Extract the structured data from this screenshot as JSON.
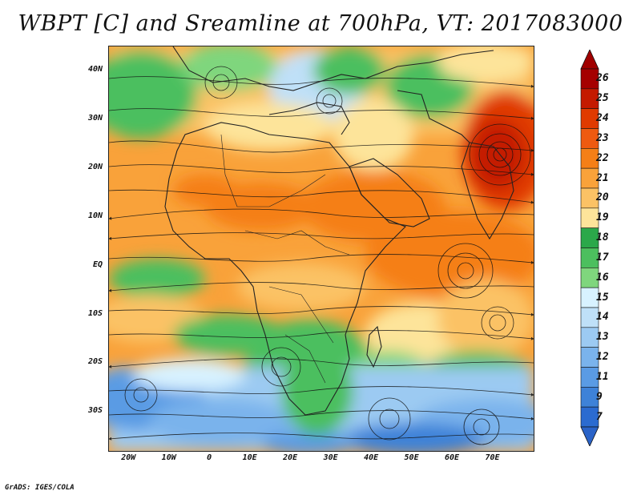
{
  "title": "WBPT [C] and Sreamline at 700hPa, VT: 2017083000",
  "credit": "GrADS: IGES/COLA",
  "lat_labels": [
    "40N",
    "30N",
    "20N",
    "10N",
    "EQ",
    "10S",
    "20S",
    "30S"
  ],
  "lon_labels": [
    "20W",
    "10W",
    "0",
    "10E",
    "20E",
    "30E",
    "40E",
    "50E",
    "60E",
    "70E"
  ],
  "colorbar": {
    "labels": [
      "26",
      "25",
      "24",
      "23",
      "22",
      "21",
      "20",
      "19",
      "18",
      "17",
      "16",
      "15",
      "14",
      "13",
      "12",
      "11",
      "9",
      "7"
    ],
    "colors": [
      "#a50000",
      "#c41a00",
      "#e03a00",
      "#ee5a10",
      "#f57f17",
      "#f9a23a",
      "#fbc265",
      "#fde49a",
      "#2ba84a",
      "#4cbf5e",
      "#7fd67d",
      "#d8f2ff",
      "#bfe0f8",
      "#9ccaf2",
      "#7ab3ec",
      "#5a9be4",
      "#3e82d8",
      "#2b6bd0"
    ],
    "min_arrow_color": "#2a63c8",
    "max_arrow_color": "#a00000"
  },
  "chart_data": {
    "type": "heatmap",
    "title": "WBPT [C] and Sreamline at 700hPa, VT: 2017083000",
    "variable": "Wet-bulb potential temperature (C) with streamlines",
    "level": "700hPa",
    "valid_time": "2017083000",
    "lon_range": [
      -25,
      80
    ],
    "lat_range": [
      -38,
      45
    ],
    "x_ticks": [
      "20W",
      "10W",
      "0",
      "10E",
      "20E",
      "30E",
      "40E",
      "50E",
      "60E",
      "70E"
    ],
    "y_ticks": [
      "40N",
      "30N",
      "20N",
      "10N",
      "EQ",
      "10S",
      "20S",
      "30S"
    ],
    "colorbar_levels": [
      7,
      9,
      11,
      12,
      13,
      14,
      15,
      16,
      17,
      18,
      19,
      20,
      21,
      22,
      23,
      24,
      25,
      26
    ]
  }
}
